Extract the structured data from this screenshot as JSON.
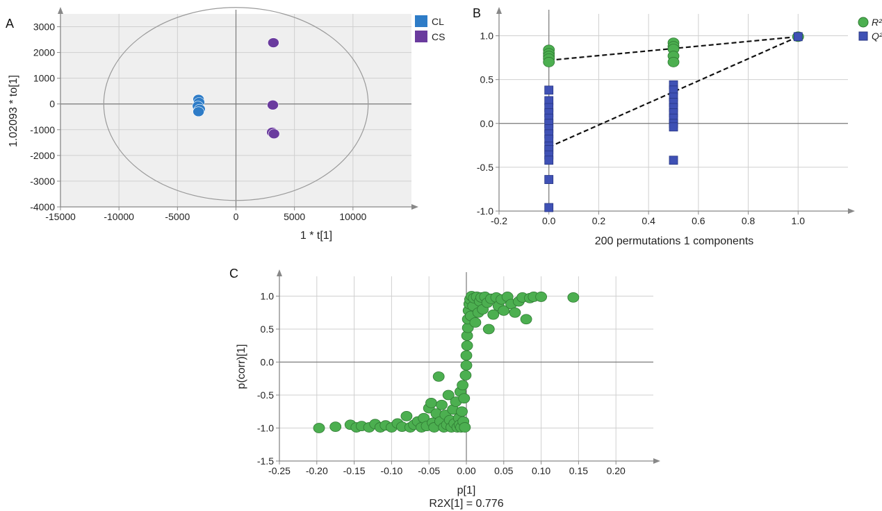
{
  "colors": {
    "cl": "#2e7cc7",
    "cs": "#6a3b9e",
    "r2": "#4caf50",
    "q2": "#3f51b5",
    "plot_bg": "#efefef",
    "grid": "#cfcfcf"
  },
  "chart_data": [
    {
      "panel": "A",
      "type": "scatter",
      "xlabel": "1 * t[1]",
      "ylabel": "1.02093 * to[1]",
      "xlim": [
        -15000,
        15000
      ],
      "ylim": [
        -4000,
        3500
      ],
      "xticks": [
        -15000,
        -10000,
        -5000,
        0,
        5000,
        10000
      ],
      "yticks": [
        -4000,
        -3000,
        -2000,
        -1000,
        0,
        1000,
        2000,
        3000
      ],
      "xtick_labels": [
        "-15000",
        "-10000",
        "-5000",
        "0",
        "5000",
        "10000"
      ],
      "ytick_labels": [
        "-4000",
        "-3000",
        "-2000",
        "-1000",
        "0",
        "1000",
        "2000",
        "3000"
      ],
      "grid": true,
      "legend_position": "top-right",
      "ellipse": {
        "cx": 0,
        "cy": 0,
        "rx": 11300,
        "ry": 3750
      },
      "series": [
        {
          "name": "CL",
          "color_key": "cl",
          "points": [
            [
              -3200,
              180
            ],
            [
              -3150,
              60
            ],
            [
              -3250,
              -80
            ],
            [
              -3100,
              -200
            ],
            [
              -3200,
              -300
            ]
          ]
        },
        {
          "name": "CS",
          "color_key": "cs",
          "points": [
            [
              3200,
              2380
            ],
            [
              3150,
              -40
            ],
            [
              3100,
              -1100
            ],
            [
              3250,
              -1160
            ]
          ]
        }
      ]
    },
    {
      "panel": "B",
      "type": "scatter",
      "xlabel": "200 permutations 1 components",
      "ylabel": "",
      "xlim": [
        -0.2,
        1.2
      ],
      "ylim": [
        -1.0,
        1.25
      ],
      "xticks": [
        -0.2,
        0.0,
        0.2,
        0.4,
        0.6,
        0.8,
        1.0
      ],
      "yticks": [
        -1.0,
        -0.5,
        0.0,
        0.5,
        1.0
      ],
      "xtick_labels": [
        "-0.2",
        "0.0",
        "0.2",
        "0.4",
        "0.6",
        "0.8",
        "1.0"
      ],
      "ytick_labels": [
        "-1.0",
        "-0.5",
        "0.0",
        "0.5",
        "1.0"
      ],
      "grid": true,
      "legend_position": "top-right",
      "series": [
        {
          "name": "R²",
          "marker": "circle",
          "color_key": "r2",
          "points": [
            [
              0,
              0.84
            ],
            [
              0,
              0.8
            ],
            [
              0,
              0.77
            ],
            [
              0,
              0.74
            ],
            [
              0,
              0.7
            ],
            [
              0.5,
              0.92
            ],
            [
              0.5,
              0.88
            ],
            [
              0.5,
              0.85
            ],
            [
              0.5,
              0.77
            ],
            [
              0.5,
              0.7
            ],
            [
              1.0,
              0.99
            ]
          ]
        },
        {
          "name": "Q²",
          "marker": "square",
          "color_key": "q2",
          "points": [
            [
              0,
              0.38
            ],
            [
              0,
              0.26
            ],
            [
              0,
              0.18
            ],
            [
              0,
              0.12
            ],
            [
              0,
              0.06
            ],
            [
              0,
              0.0
            ],
            [
              0,
              -0.06
            ],
            [
              0,
              -0.12
            ],
            [
              0,
              -0.18
            ],
            [
              0,
              -0.26
            ],
            [
              0,
              -0.3
            ],
            [
              0,
              -0.36
            ],
            [
              0,
              -0.42
            ],
            [
              0,
              -0.64
            ],
            [
              0,
              -0.96
            ],
            [
              0.5,
              0.44
            ],
            [
              0.5,
              0.38
            ],
            [
              0.5,
              0.3
            ],
            [
              0.5,
              0.24
            ],
            [
              0.5,
              0.18
            ],
            [
              0.5,
              0.12
            ],
            [
              0.5,
              0.06
            ],
            [
              0.5,
              0.0
            ],
            [
              0.5,
              -0.04
            ],
            [
              0.5,
              -0.42
            ],
            [
              1.0,
              0.99
            ]
          ]
        }
      ],
      "trend_lines": [
        {
          "of": "R²",
          "from": [
            0,
            0.72
          ],
          "to": [
            1.0,
            0.99
          ]
        },
        {
          "of": "Q²",
          "from": [
            0,
            -0.27
          ],
          "to": [
            1.0,
            0.99
          ]
        }
      ]
    },
    {
      "panel": "C",
      "type": "scatter",
      "xlabel": "p[1]",
      "xlabel2": "R2X[1] = 0.776",
      "ylabel": "p(corr)[1]",
      "xlim": [
        -0.25,
        0.25
      ],
      "ylim": [
        -1.5,
        1.3
      ],
      "xticks": [
        -0.25,
        -0.2,
        -0.15,
        -0.1,
        -0.05,
        0.0,
        0.05,
        0.1,
        0.15,
        0.2
      ],
      "yticks": [
        -1.5,
        -1.0,
        -0.5,
        0.0,
        0.5,
        1.0
      ],
      "xtick_labels": [
        "-0.25",
        "-0.20",
        "-0.15",
        "-0.10",
        "-0.05",
        "0.00",
        "0.05",
        "0.10",
        "0.15",
        "0.20"
      ],
      "ytick_labels": [
        "-1.5",
        "-1.0",
        "-0.5",
        "0.0",
        "0.5",
        "1.0"
      ],
      "grid": true,
      "series": [
        {
          "name": "",
          "color_key": "r2",
          "points": [
            [
              -0.197,
              -1.0
            ],
            [
              -0.175,
              -0.98
            ],
            [
              -0.155,
              -0.95
            ],
            [
              -0.147,
              -0.99
            ],
            [
              -0.14,
              -0.97
            ],
            [
              -0.13,
              -0.99
            ],
            [
              -0.122,
              -0.94
            ],
            [
              -0.115,
              -0.99
            ],
            [
              -0.108,
              -0.96
            ],
            [
              -0.1,
              -0.99
            ],
            [
              -0.092,
              -0.93
            ],
            [
              -0.086,
              -0.98
            ],
            [
              -0.08,
              -0.82
            ],
            [
              -0.075,
              -0.99
            ],
            [
              -0.07,
              -0.95
            ],
            [
              -0.065,
              -0.9
            ],
            [
              -0.06,
              -0.99
            ],
            [
              -0.057,
              -0.85
            ],
            [
              -0.053,
              -0.97
            ],
            [
              -0.05,
              -0.7
            ],
            [
              -0.047,
              -0.62
            ],
            [
              -0.045,
              -0.92
            ],
            [
              -0.043,
              -0.99
            ],
            [
              -0.04,
              -0.78
            ],
            [
              -0.037,
              -0.22
            ],
            [
              -0.035,
              -0.9
            ],
            [
              -0.033,
              -0.65
            ],
            [
              -0.03,
              -0.99
            ],
            [
              -0.028,
              -0.8
            ],
            [
              -0.026,
              -0.95
            ],
            [
              -0.024,
              -0.5
            ],
            [
              -0.022,
              -0.88
            ],
            [
              -0.02,
              -0.99
            ],
            [
              -0.018,
              -0.72
            ],
            [
              -0.016,
              -0.93
            ],
            [
              -0.014,
              -0.6
            ],
            [
              -0.012,
              -0.99
            ],
            [
              -0.01,
              -0.85
            ],
            [
              -0.009,
              -0.95
            ],
            [
              -0.008,
              -0.45
            ],
            [
              -0.007,
              -0.99
            ],
            [
              -0.006,
              -0.75
            ],
            [
              -0.005,
              -0.35
            ],
            [
              -0.004,
              -0.9
            ],
            [
              -0.003,
              -0.55
            ],
            [
              -0.002,
              -0.99
            ],
            [
              -0.001,
              -0.2
            ],
            [
              0.0,
              -0.05
            ],
            [
              0.0,
              0.1
            ],
            [
              0.001,
              0.25
            ],
            [
              0.001,
              0.4
            ],
            [
              0.002,
              0.52
            ],
            [
              0.002,
              0.65
            ],
            [
              0.003,
              0.78
            ],
            [
              0.004,
              0.88
            ],
            [
              0.005,
              0.95
            ],
            [
              0.006,
              0.7
            ],
            [
              0.007,
              1.0
            ],
            [
              0.009,
              0.85
            ],
            [
              0.01,
              0.97
            ],
            [
              0.012,
              0.6
            ],
            [
              0.014,
              0.99
            ],
            [
              0.016,
              0.75
            ],
            [
              0.018,
              0.92
            ],
            [
              0.02,
              0.98
            ],
            [
              0.022,
              0.8
            ],
            [
              0.025,
              0.99
            ],
            [
              0.028,
              0.9
            ],
            [
              0.03,
              0.5
            ],
            [
              0.033,
              0.96
            ],
            [
              0.036,
              0.72
            ],
            [
              0.04,
              0.98
            ],
            [
              0.043,
              0.85
            ],
            [
              0.047,
              0.95
            ],
            [
              0.05,
              0.78
            ],
            [
              0.055,
              0.99
            ],
            [
              0.06,
              0.88
            ],
            [
              0.065,
              0.75
            ],
            [
              0.07,
              0.92
            ],
            [
              0.075,
              0.98
            ],
            [
              0.08,
              0.65
            ],
            [
              0.085,
              0.97
            ],
            [
              0.09,
              0.99
            ],
            [
              0.1,
              0.99
            ],
            [
              0.143,
              0.98
            ]
          ]
        }
      ]
    }
  ],
  "panels": {
    "a": "A",
    "b": "B",
    "c": "C"
  }
}
